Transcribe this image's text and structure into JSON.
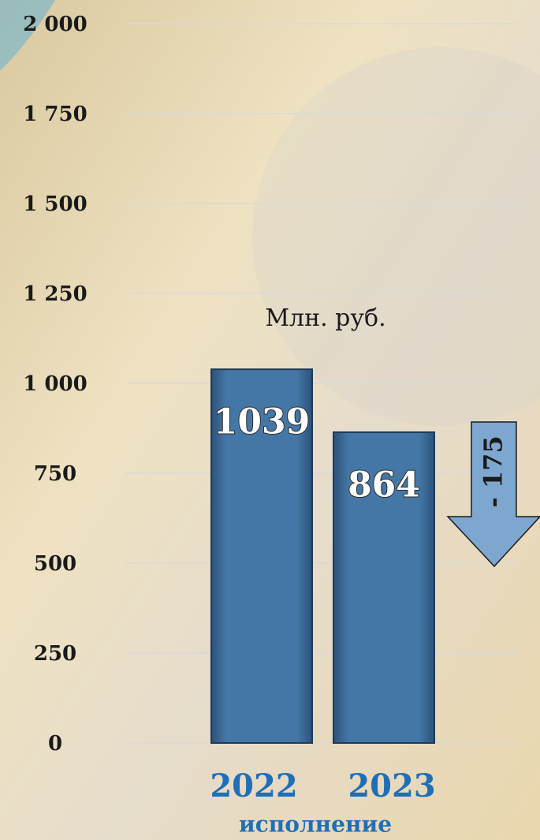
{
  "chart_data": {
    "type": "bar",
    "unit_label": "Млн. руб.",
    "categories": [
      "2022",
      "2023"
    ],
    "x_label": "исполнение",
    "values": [
      1039,
      864
    ],
    "color": "#3e6f9c",
    "ylim": [
      0,
      2000
    ],
    "yticks": [
      0,
      250,
      500,
      750,
      {
        "value": 1000,
        "label": "1 000"
      },
      {
        "value": 1250,
        "label": "1 250"
      },
      {
        "value": 1500,
        "label": "1 500"
      },
      {
        "value": 1750,
        "label": "1 750"
      },
      {
        "value": 2000,
        "label": "2 000"
      }
    ],
    "grid": true,
    "annotation": "- 175"
  }
}
